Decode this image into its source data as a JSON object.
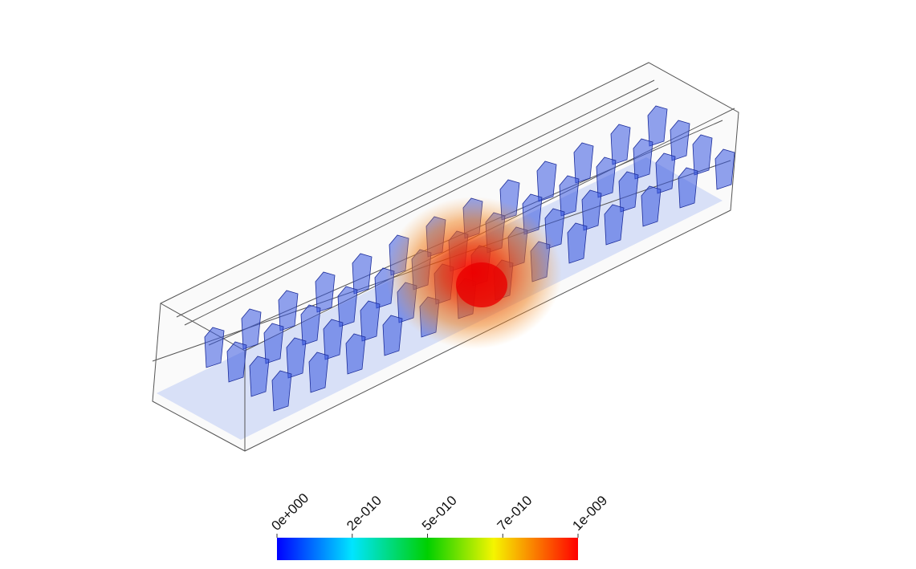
{
  "colorbar": {
    "tick_labels": [
      "0e+000",
      "2e-010",
      "5e-010",
      "7e-010",
      "1e-009"
    ]
  }
}
